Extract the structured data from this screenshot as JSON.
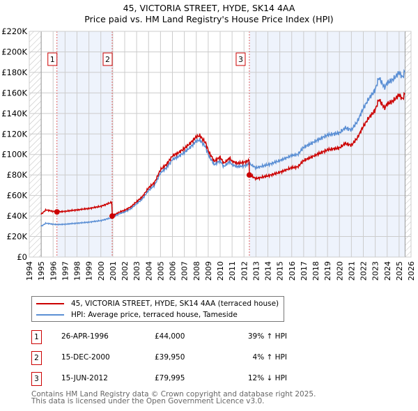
{
  "title": "45, VICTORIA STREET, HYDE, SK14 4AA",
  "subtitle": "Price paid vs. HM Land Registry's House Price Index (HPI)",
  "colors": {
    "property": "#cc0000",
    "hpi": "#5b8fd4",
    "shade": "#eef3fc"
  },
  "legend": [
    {
      "label": "45, VICTORIA STREET, HYDE, SK14 4AA (terraced house)"
    },
    {
      "label": "HPI: Average price, terraced house, Tameside"
    }
  ],
  "sales": [
    {
      "num": "1",
      "date": "26-APR-1996",
      "price": "£44,000",
      "delta": "39% ↑ HPI",
      "x": 1996.32,
      "y": 44000
    },
    {
      "num": "2",
      "date": "15-DEC-2000",
      "price": "£39,950",
      "delta": "4% ↑ HPI",
      "x": 2000.95,
      "y": 39950
    },
    {
      "num": "3",
      "date": "15-JUN-2012",
      "price": "£79,995",
      "delta": "12% ↓ HPI",
      "x": 2012.45,
      "y": 79995
    }
  ],
  "footer": [
    "Contains HM Land Registry data © Crown copyright and database right 2025.",
    "This data is licensed under the Open Government Licence v3.0."
  ],
  "chart_data": {
    "type": "line",
    "xlim": [
      1994,
      2026
    ],
    "ylim": [
      0,
      220000
    ],
    "yticks": [
      "£0",
      "£20K",
      "£40K",
      "£60K",
      "£80K",
      "£100K",
      "£120K",
      "£140K",
      "£160K",
      "£180K",
      "£200K",
      "£220K"
    ],
    "xticks": [
      "1994",
      "1995",
      "1996",
      "1997",
      "1998",
      "1999",
      "2000",
      "2001",
      "2002",
      "2003",
      "2004",
      "2005",
      "2006",
      "2007",
      "2008",
      "2009",
      "2010",
      "2011",
      "2012",
      "2013",
      "2014",
      "2015",
      "2016",
      "2017",
      "2018",
      "2019",
      "2020",
      "2021",
      "2022",
      "2023",
      "2024",
      "2025",
      "2026"
    ],
    "data_end": 2025.5,
    "x": [
      1995,
      1995.4,
      1996,
      1996.32,
      1997,
      1998,
      1999,
      2000,
      2000.95,
      2001.5,
      2002,
      2002.5,
      2003,
      2003.5,
      2004,
      2004.5,
      2005,
      2005.5,
      2006,
      2006.5,
      2007,
      2007.5,
      2008,
      2008.3,
      2008.8,
      2009,
      2009.5,
      2010,
      2010.3,
      2010.8,
      2011,
      2011.5,
      2012,
      2012.45,
      2013,
      2014,
      2015,
      2016,
      2016.5,
      2017,
      2018,
      2019,
      2020,
      2020.5,
      2021,
      2021.5,
      2022,
      2022.5,
      2023,
      2023.3,
      2023.8,
      2024,
      2024.5,
      2025,
      2025.3,
      2025.5
    ],
    "series": [
      {
        "name": "HPI: Average price, terraced house, Tameside",
        "values": [
          30000,
          33000,
          32000,
          31600,
          32000,
          33000,
          34000,
          35500,
          38500,
          42000,
          44000,
          47000,
          52000,
          57000,
          65000,
          70000,
          82000,
          87000,
          95000,
          98000,
          102000,
          107000,
          113000,
          114000,
          107000,
          100000,
          90000,
          94000,
          88000,
          93000,
          90000,
          88000,
          89000,
          91000,
          87000,
          90000,
          94000,
          99000,
          100000,
          107000,
          113000,
          119000,
          121000,
          126000,
          124000,
          132000,
          145000,
          155000,
          163000,
          175000,
          165000,
          170000,
          173000,
          180000,
          175000,
          182000
        ]
      }
    ]
  }
}
